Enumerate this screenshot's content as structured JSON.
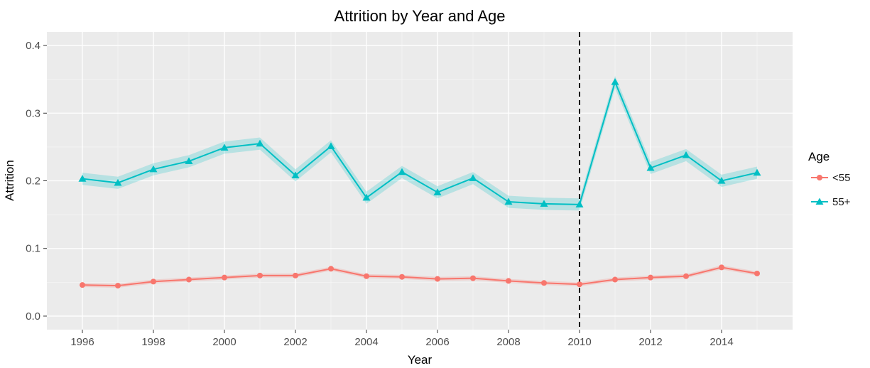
{
  "chart_data": {
    "type": "line",
    "title": "Attrition by Year and Age",
    "xlabel": "Year",
    "ylabel": "Attrition",
    "xlim": [
      1995.0,
      2016.0
    ],
    "ylim": [
      -0.02,
      0.42
    ],
    "x_ticks": [
      "1996",
      "1998",
      "2000",
      "2002",
      "2004",
      "2006",
      "2008",
      "2010",
      "2012",
      "2014"
    ],
    "y_ticks": [
      "0.0",
      "0.1",
      "0.2",
      "0.3",
      "0.4"
    ],
    "grid": true,
    "vline": 2010,
    "legend": {
      "title": "Age",
      "position": "right"
    },
    "x": [
      1996,
      1997,
      1998,
      1999,
      2000,
      2001,
      2002,
      2003,
      2004,
      2005,
      2006,
      2007,
      2008,
      2009,
      2010,
      2011,
      2012,
      2013,
      2014,
      2015
    ],
    "series": [
      {
        "name": "<55",
        "color": "#F8766D",
        "marker": "circle",
        "values": [
          0.046,
          0.045,
          0.051,
          0.054,
          0.057,
          0.06,
          0.06,
          0.07,
          0.059,
          0.058,
          0.055,
          0.056,
          0.052,
          0.049,
          0.047,
          0.054,
          0.057,
          0.059,
          0.072,
          0.063
        ],
        "band": 0.003
      },
      {
        "name": "55+",
        "color": "#00BFC4",
        "marker": "triangle",
        "values": [
          0.203,
          0.197,
          0.217,
          0.229,
          0.249,
          0.255,
          0.208,
          0.251,
          0.175,
          0.213,
          0.183,
          0.204,
          0.169,
          0.166,
          0.165,
          0.346,
          0.219,
          0.238,
          0.2,
          0.212
        ],
        "band": 0.009
      }
    ]
  }
}
